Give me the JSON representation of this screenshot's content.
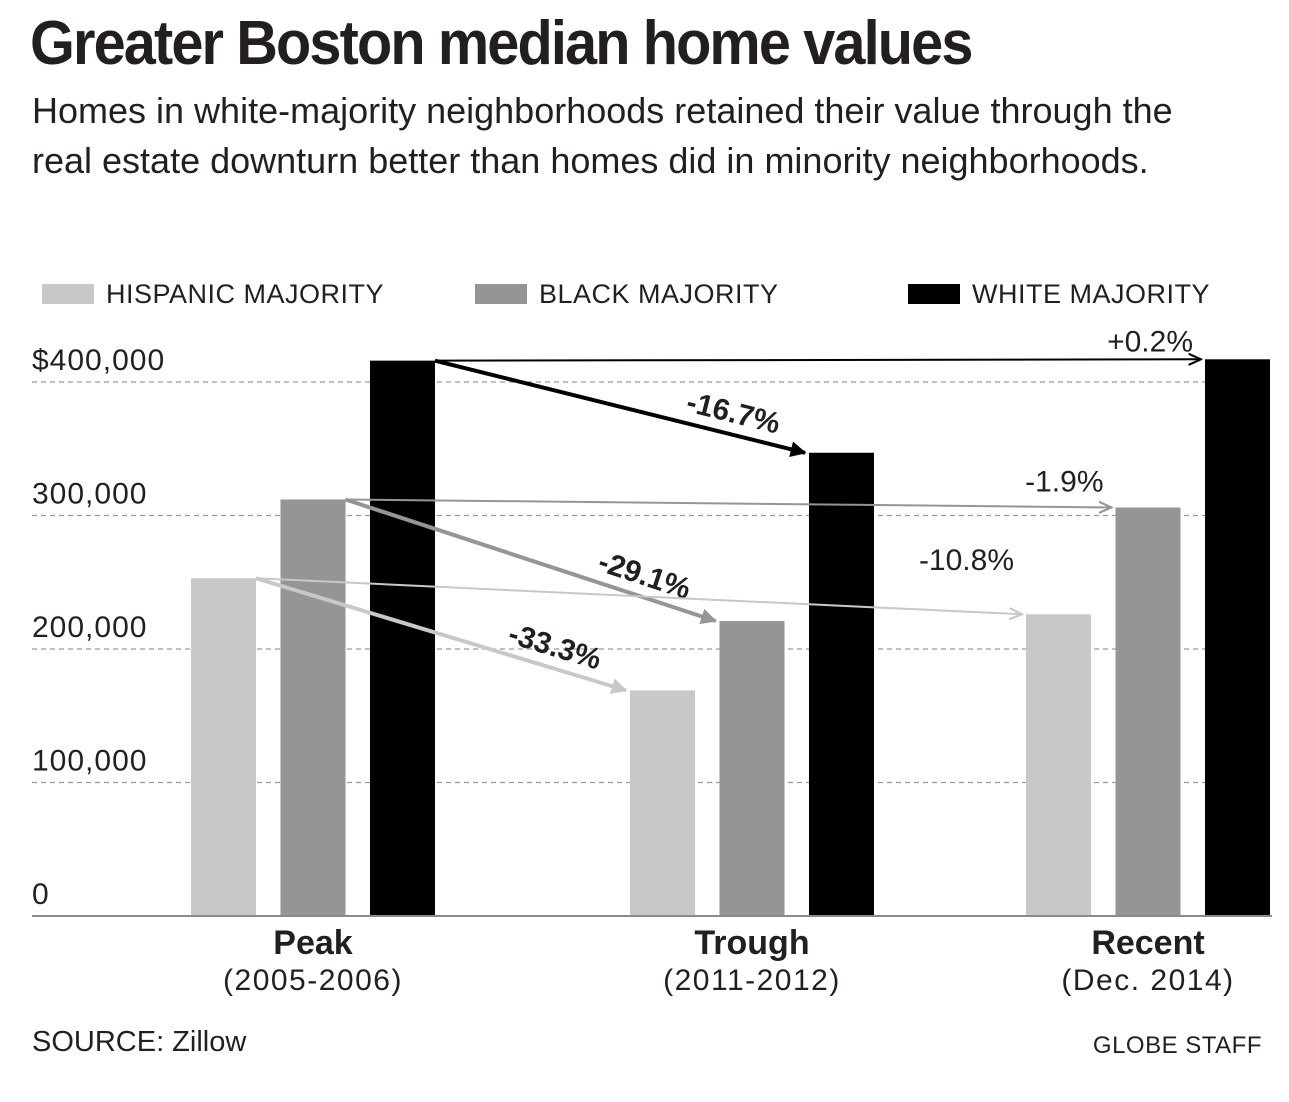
{
  "header": {
    "title": "Greater Boston median home values",
    "subtitle": "Homes in white-majority neighborhoods retained their value through the real estate downturn better than homes did in minority neighborhoods."
  },
  "legend": [
    {
      "label": "HISPANIC MAJORITY",
      "color": "#c8c8c8"
    },
    {
      "label": "BLACK MAJORITY",
      "color": "#959595"
    },
    {
      "label": "WHITE MAJORITY",
      "color": "#000000"
    }
  ],
  "footer": {
    "source": "SOURCE: Zillow",
    "credit": "GLOBE STAFF"
  },
  "chart_data": {
    "type": "bar",
    "title": "Greater Boston median home values",
    "subtitle": "Homes in white-majority neighborhoods retained their value through the real estate downturn better than homes did in minority neighborhoods.",
    "categories": [
      {
        "label": "Peak",
        "sublabel": "(2005-2006)"
      },
      {
        "label": "Trough",
        "sublabel": "(2011-2012)"
      },
      {
        "label": "Recent",
        "sublabel": "(Dec. 2014)"
      }
    ],
    "series": [
      {
        "name": "HISPANIC MAJORITY",
        "color": "#c8c8c8",
        "values": [
          253000,
          169000,
          226000
        ]
      },
      {
        "name": "BLACK MAJORITY",
        "color": "#959595",
        "values": [
          312000,
          221000,
          306000
        ]
      },
      {
        "name": "WHITE MAJORITY",
        "color": "#000000",
        "values": [
          416000,
          347000,
          417000
        ]
      }
    ],
    "y_ticks": [
      {
        "value": 0,
        "label": "0"
      },
      {
        "value": 100000,
        "label": "100,000"
      },
      {
        "value": 200000,
        "label": "200,000"
      },
      {
        "value": 300000,
        "label": "300,000"
      },
      {
        "value": 400000,
        "label": "$400,000"
      }
    ],
    "ylim": [
      0,
      420000
    ],
    "grid": true,
    "annotations": [
      {
        "series": 2,
        "from": 0,
        "to": 1,
        "label": "-16.7%",
        "bold": true,
        "color": "#000000"
      },
      {
        "series": 1,
        "from": 0,
        "to": 1,
        "label": "-29.1%",
        "bold": true,
        "color": "#959595"
      },
      {
        "series": 0,
        "from": 0,
        "to": 1,
        "label": "-33.3%",
        "bold": true,
        "color": "#c8c8c8"
      },
      {
        "series": 2,
        "from": 0,
        "to": 2,
        "label": "+0.2%",
        "bold": false,
        "color": "#000000"
      },
      {
        "series": 1,
        "from": 0,
        "to": 2,
        "label": "-1.9%",
        "bold": false,
        "color": "#959595"
      },
      {
        "series": 0,
        "from": 0,
        "to": 2,
        "label": "-10.8%",
        "bold": false,
        "color": "#c8c8c8"
      }
    ],
    "source": "SOURCE: Zillow",
    "credit": "GLOBE STAFF"
  }
}
